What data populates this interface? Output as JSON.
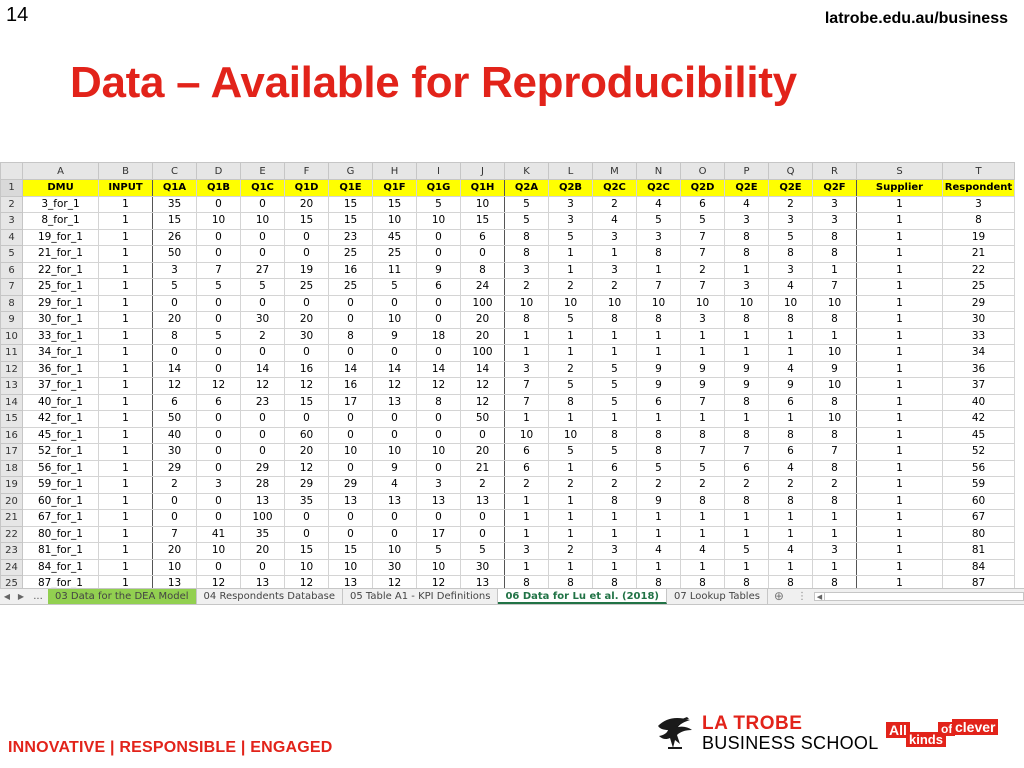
{
  "slide": {
    "number": "14",
    "url": "latrobe.edu.au/business",
    "title": "Data – Available for Reproducibility"
  },
  "spreadsheet": {
    "column_letters": [
      "A",
      "B",
      "C",
      "D",
      "E",
      "F",
      "G",
      "H",
      "I",
      "J",
      "K",
      "L",
      "M",
      "N",
      "O",
      "P",
      "Q",
      "R",
      "S",
      "T"
    ],
    "header_row_number": "1",
    "headers": [
      "DMU",
      "INPUT",
      "Q1A",
      "Q1B",
      "Q1C",
      "Q1D",
      "Q1E",
      "Q1F",
      "Q1G",
      "Q1H",
      "Q2A",
      "Q2B",
      "Q2C",
      "Q2C",
      "Q2D",
      "Q2E",
      "Q2E",
      "Q2F",
      "Supplier",
      "Respondent"
    ],
    "rows": [
      [
        "2",
        "3_for_1",
        "1",
        "35",
        "0",
        "0",
        "20",
        "15",
        "15",
        "5",
        "10",
        "5",
        "3",
        "2",
        "4",
        "6",
        "4",
        "2",
        "3",
        "1",
        "3"
      ],
      [
        "3",
        "8_for_1",
        "1",
        "15",
        "10",
        "10",
        "15",
        "15",
        "10",
        "10",
        "15",
        "5",
        "3",
        "4",
        "5",
        "5",
        "3",
        "3",
        "3",
        "1",
        "8"
      ],
      [
        "4",
        "19_for_1",
        "1",
        "26",
        "0",
        "0",
        "0",
        "23",
        "45",
        "0",
        "6",
        "8",
        "5",
        "3",
        "3",
        "7",
        "8",
        "5",
        "8",
        "1",
        "19"
      ],
      [
        "5",
        "21_for_1",
        "1",
        "50",
        "0",
        "0",
        "0",
        "25",
        "25",
        "0",
        "0",
        "8",
        "1",
        "1",
        "8",
        "7",
        "8",
        "8",
        "8",
        "1",
        "21"
      ],
      [
        "6",
        "22_for_1",
        "1",
        "3",
        "7",
        "27",
        "19",
        "16",
        "11",
        "9",
        "8",
        "3",
        "1",
        "3",
        "1",
        "2",
        "1",
        "3",
        "1",
        "1",
        "22"
      ],
      [
        "7",
        "25_for_1",
        "1",
        "5",
        "5",
        "5",
        "25",
        "25",
        "5",
        "6",
        "24",
        "2",
        "2",
        "2",
        "7",
        "7",
        "3",
        "4",
        "7",
        "1",
        "25"
      ],
      [
        "8",
        "29_for_1",
        "1",
        "0",
        "0",
        "0",
        "0",
        "0",
        "0",
        "0",
        "100",
        "10",
        "10",
        "10",
        "10",
        "10",
        "10",
        "10",
        "10",
        "1",
        "29"
      ],
      [
        "9",
        "30_for_1",
        "1",
        "20",
        "0",
        "30",
        "20",
        "0",
        "10",
        "0",
        "20",
        "8",
        "5",
        "8",
        "8",
        "3",
        "8",
        "8",
        "8",
        "1",
        "30"
      ],
      [
        "10",
        "33_for_1",
        "1",
        "8",
        "5",
        "2",
        "30",
        "8",
        "9",
        "18",
        "20",
        "1",
        "1",
        "1",
        "1",
        "1",
        "1",
        "1",
        "1",
        "1",
        "33"
      ],
      [
        "11",
        "34_for_1",
        "1",
        "0",
        "0",
        "0",
        "0",
        "0",
        "0",
        "0",
        "100",
        "1",
        "1",
        "1",
        "1",
        "1",
        "1",
        "1",
        "10",
        "1",
        "34"
      ],
      [
        "12",
        "36_for_1",
        "1",
        "14",
        "0",
        "14",
        "16",
        "14",
        "14",
        "14",
        "14",
        "3",
        "2",
        "5",
        "9",
        "9",
        "9",
        "4",
        "9",
        "1",
        "36"
      ],
      [
        "13",
        "37_for_1",
        "1",
        "12",
        "12",
        "12",
        "12",
        "16",
        "12",
        "12",
        "12",
        "7",
        "5",
        "5",
        "9",
        "9",
        "9",
        "9",
        "10",
        "1",
        "37"
      ],
      [
        "14",
        "40_for_1",
        "1",
        "6",
        "6",
        "23",
        "15",
        "17",
        "13",
        "8",
        "12",
        "7",
        "8",
        "5",
        "6",
        "7",
        "8",
        "6",
        "8",
        "1",
        "40"
      ],
      [
        "15",
        "42_for_1",
        "1",
        "50",
        "0",
        "0",
        "0",
        "0",
        "0",
        "0",
        "50",
        "1",
        "1",
        "1",
        "1",
        "1",
        "1",
        "1",
        "10",
        "1",
        "42"
      ],
      [
        "16",
        "45_for_1",
        "1",
        "40",
        "0",
        "0",
        "60",
        "0",
        "0",
        "0",
        "0",
        "10",
        "10",
        "8",
        "8",
        "8",
        "8",
        "8",
        "8",
        "1",
        "45"
      ],
      [
        "17",
        "52_for_1",
        "1",
        "30",
        "0",
        "0",
        "20",
        "10",
        "10",
        "10",
        "20",
        "6",
        "5",
        "5",
        "8",
        "7",
        "7",
        "6",
        "7",
        "1",
        "52"
      ],
      [
        "18",
        "56_for_1",
        "1",
        "29",
        "0",
        "29",
        "12",
        "0",
        "9",
        "0",
        "21",
        "6",
        "1",
        "6",
        "5",
        "5",
        "6",
        "4",
        "8",
        "1",
        "56"
      ],
      [
        "19",
        "59_for_1",
        "1",
        "2",
        "3",
        "28",
        "29",
        "29",
        "4",
        "3",
        "2",
        "2",
        "2",
        "2",
        "2",
        "2",
        "2",
        "2",
        "2",
        "1",
        "59"
      ],
      [
        "20",
        "60_for_1",
        "1",
        "0",
        "0",
        "13",
        "35",
        "13",
        "13",
        "13",
        "13",
        "1",
        "1",
        "8",
        "9",
        "8",
        "8",
        "8",
        "8",
        "1",
        "60"
      ],
      [
        "21",
        "67_for_1",
        "1",
        "0",
        "0",
        "100",
        "0",
        "0",
        "0",
        "0",
        "0",
        "1",
        "1",
        "1",
        "1",
        "1",
        "1",
        "1",
        "1",
        "1",
        "67"
      ],
      [
        "22",
        "80_for_1",
        "1",
        "7",
        "41",
        "35",
        "0",
        "0",
        "0",
        "17",
        "0",
        "1",
        "1",
        "1",
        "1",
        "1",
        "1",
        "1",
        "1",
        "1",
        "80"
      ],
      [
        "23",
        "81_for_1",
        "1",
        "20",
        "10",
        "20",
        "15",
        "15",
        "10",
        "5",
        "5",
        "3",
        "2",
        "3",
        "4",
        "4",
        "5",
        "4",
        "3",
        "1",
        "81"
      ],
      [
        "24",
        "84_for_1",
        "1",
        "10",
        "0",
        "0",
        "10",
        "10",
        "30",
        "10",
        "30",
        "1",
        "1",
        "1",
        "1",
        "1",
        "1",
        "1",
        "1",
        "1",
        "84"
      ],
      [
        "25",
        "87_for_1",
        "1",
        "13",
        "12",
        "13",
        "12",
        "13",
        "12",
        "12",
        "13",
        "8",
        "8",
        "8",
        "8",
        "8",
        "8",
        "8",
        "8",
        "1",
        "87"
      ]
    ]
  },
  "tabs": {
    "nav_prev": "◀",
    "nav_next": "▶",
    "ellipsis": "...",
    "items": [
      {
        "label": "03 Data for the DEA Model",
        "style": "green"
      },
      {
        "label": "04 Respondents Database",
        "style": "normal"
      },
      {
        "label": "05 Table A1 - KPI Definitions",
        "style": "normal"
      },
      {
        "label": "06 Data for Lu et al. (2018)",
        "style": "active"
      },
      {
        "label": "07 Lookup Tables",
        "style": "normal"
      }
    ],
    "add_symbol": "⊕",
    "dots": "⋮"
  },
  "footer": {
    "tagline": "INNOVATIVE | RESPONSIBLE | ENGAGED",
    "logo_line1": "LA TROBE",
    "logo_line2": "BUSINESS SCHOOL",
    "campaign": {
      "w1": "All",
      "w2": "kinds",
      "w3": "of",
      "w4": "clever"
    }
  },
  "colors": {
    "brand_red": "#e2231a",
    "header_yellow": "#ffff00",
    "excel_green": "#217346",
    "tab_green": "#92d050"
  },
  "icons": [
    "eagle-logo-icon",
    "add-sheet-icon"
  ]
}
